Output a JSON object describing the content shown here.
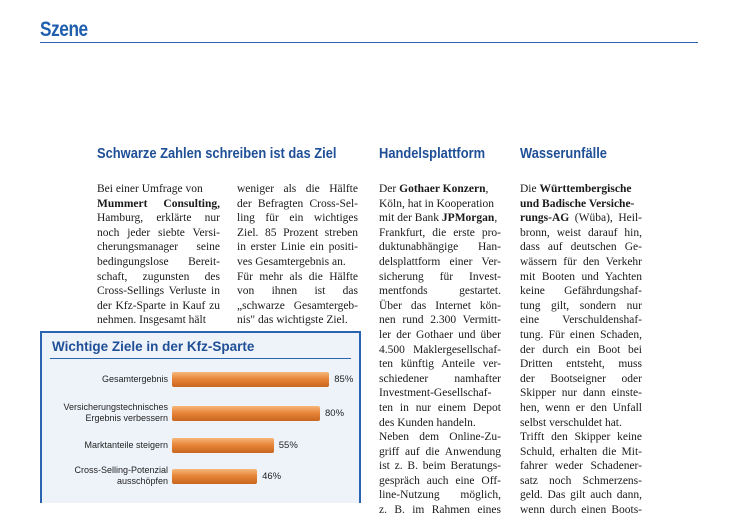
{
  "header": {
    "section": "Szene"
  },
  "article1": {
    "headline": "Schwarze Zahlen schreiben ist das Ziel",
    "col1": [
      {
        "t": "Bei einer Umfrage von"
      },
      {
        "t": "Mummert Consulting,",
        "bold": true
      },
      {
        "t": "Hamburg, erklärte nur"
      },
      {
        "t": "noch jeder siebte Versi-"
      },
      {
        "t": "cherungsmanager seine"
      },
      {
        "t": "bedingungslose Bereit-"
      },
      {
        "t": "schaft, zugunsten des"
      },
      {
        "t": "Cross-Sellings Verluste in"
      },
      {
        "t": "der Kfz-Sparte in Kauf zu"
      },
      {
        "t": "nehmen. Insgesamt hält"
      }
    ],
    "col2": [
      "weniger als die Hälfte",
      "der Befragten Cross-Sel-",
      "ling für ein wichtiges",
      "Ziel. 85 Prozent streben",
      "in erster Linie ein positi-",
      "ves Gesamtergebnis an.",
      "Für mehr als die Hälfte",
      "von ihnen ist das",
      "„schwarze Gesamtergeb-",
      "nis\" das wichtigste Ziel."
    ]
  },
  "chart_box": {
    "title": "Wichtige Ziele in der Kfz-Sparte"
  },
  "chart_data": {
    "type": "bar",
    "title": "Wichtige Ziele in der Kfz-Sparte",
    "categories": [
      "Gesamtergebnis",
      "Versicherungstechnisches Ergebnis verbessern",
      "Marktanteile steigern",
      "Cross-Selling-Potenzial ausschöpfen"
    ],
    "category_lines": [
      [
        "Gesamtergebnis"
      ],
      [
        "Versicherungstechnisches",
        "Ergebnis verbessern"
      ],
      [
        "Marktanteile steigern"
      ],
      [
        "Cross-Selling-Potenzial",
        "ausschöpfen"
      ]
    ],
    "values": [
      85,
      80,
      55,
      46
    ],
    "value_labels": [
      "85%",
      "80%",
      "55%",
      "46%"
    ],
    "xlim": [
      0,
      100
    ],
    "bar_color": "#e8863a"
  },
  "article2": {
    "headline": "Handelsplattform",
    "lines": [
      {
        "parts": [
          {
            "t": "Der "
          },
          {
            "t": "Gothaer Konzern",
            "b": true
          },
          {
            "t": ","
          }
        ]
      },
      {
        "parts": [
          {
            "t": "Köln, hat in Kooperation"
          }
        ]
      },
      {
        "parts": [
          {
            "t": "mit der Bank "
          },
          {
            "t": "JPMorgan",
            "b": true
          },
          {
            "t": ","
          }
        ]
      },
      {
        "parts": [
          {
            "t": "Frankfurt, die erste pro-"
          }
        ]
      },
      {
        "parts": [
          {
            "t": "duktunabhängige Han-"
          }
        ]
      },
      {
        "parts": [
          {
            "t": "delsplattform einer Ver-"
          }
        ]
      },
      {
        "parts": [
          {
            "t": "sicherung für Invest-"
          }
        ]
      },
      {
        "parts": [
          {
            "t": "mentfonds gestartet."
          }
        ]
      },
      {
        "parts": [
          {
            "t": "Über das Internet kön-"
          }
        ]
      },
      {
        "parts": [
          {
            "t": "nen rund 2.300 Vermitt-"
          }
        ]
      },
      {
        "parts": [
          {
            "t": "ler der Gothaer und über"
          }
        ]
      },
      {
        "parts": [
          {
            "t": "4.500 Maklergesellschaf-"
          }
        ]
      },
      {
        "parts": [
          {
            "t": "ten künftig Anteile ver-"
          }
        ]
      },
      {
        "parts": [
          {
            "t": "schiedener namhafter"
          }
        ]
      },
      {
        "parts": [
          {
            "t": "Investment-Gesellschaf-"
          }
        ]
      },
      {
        "parts": [
          {
            "t": "ten in nur einem Depot"
          }
        ]
      },
      {
        "parts": [
          {
            "t": "des Kunden handeln."
          }
        ]
      },
      {
        "parts": [
          {
            "t": "Neben dem Online-Zu-"
          }
        ]
      },
      {
        "parts": [
          {
            "t": "griff auf die Anwendung"
          }
        ]
      },
      {
        "parts": [
          {
            "t": "ist z. B. beim Beratungs-"
          }
        ]
      },
      {
        "parts": [
          {
            "t": "gespräch auch eine Off-"
          }
        ]
      },
      {
        "parts": [
          {
            "t": "line-Nutzung möglich,"
          }
        ]
      },
      {
        "parts": [
          {
            "t": "z. B. im Rahmen eines"
          }
        ]
      }
    ]
  },
  "article3": {
    "headline": "Wasserunfälle",
    "lines": [
      {
        "parts": [
          {
            "t": "Die "
          },
          {
            "t": "Württembergische",
            "b": true
          }
        ]
      },
      {
        "parts": [
          {
            "t": "und Badische Versiche-",
            "b": true
          }
        ]
      },
      {
        "parts": [
          {
            "t": "rungs-AG",
            "b": true
          },
          {
            "t": " (Wüba), Heil-"
          }
        ]
      },
      {
        "parts": [
          {
            "t": "bronn, weist darauf hin,"
          }
        ]
      },
      {
        "parts": [
          {
            "t": "dass auf deutschen Ge-"
          }
        ]
      },
      {
        "parts": [
          {
            "t": "wässern für den Verkehr"
          }
        ]
      },
      {
        "parts": [
          {
            "t": "mit Booten und Yachten"
          }
        ]
      },
      {
        "parts": [
          {
            "t": "keine Gefährdungshaf-"
          }
        ]
      },
      {
        "parts": [
          {
            "t": "tung gilt, sondern nur"
          }
        ]
      },
      {
        "parts": [
          {
            "t": "eine Verschuldenshaf-"
          }
        ]
      },
      {
        "parts": [
          {
            "t": "tung. Für einen Schaden,"
          }
        ]
      },
      {
        "parts": [
          {
            "t": "der durch ein Boot bei"
          }
        ]
      },
      {
        "parts": [
          {
            "t": "Dritten entsteht, muss"
          }
        ]
      },
      {
        "parts": [
          {
            "t": "der Bootseigner oder"
          }
        ]
      },
      {
        "parts": [
          {
            "t": "Skipper nur dann einste-"
          }
        ]
      },
      {
        "parts": [
          {
            "t": "hen, wenn er den Unfall"
          }
        ]
      },
      {
        "parts": [
          {
            "t": "selbst verschuldet hat."
          }
        ]
      },
      {
        "parts": [
          {
            "t": "Trifft den Skipper keine"
          }
        ]
      },
      {
        "parts": [
          {
            "t": "Schuld, erhalten die Mit-"
          }
        ]
      },
      {
        "parts": [
          {
            "t": "fahrer weder Schadener-"
          }
        ]
      },
      {
        "parts": [
          {
            "t": "satz noch Schmerzens-"
          }
        ]
      },
      {
        "parts": [
          {
            "t": "geld. Das gilt auch dann,"
          }
        ]
      },
      {
        "parts": [
          {
            "t": "wenn durch einen Boots-"
          }
        ]
      }
    ]
  }
}
